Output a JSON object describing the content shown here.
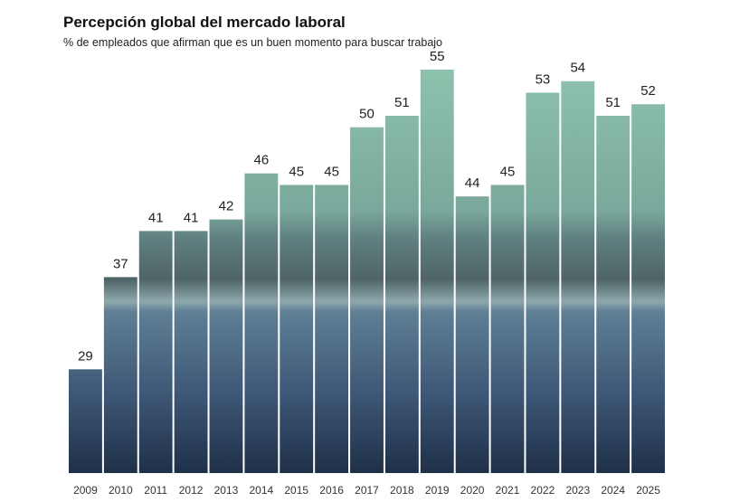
{
  "chart_data": {
    "type": "bar",
    "title": "Percepción global del mercado laboral",
    "subtitle": "% de empleados que afirman que es un buen momento para buscar trabajo",
    "categories": [
      "2009",
      "2010",
      "2011",
      "2012",
      "2013",
      "2014",
      "2015",
      "2016",
      "2017",
      "2018",
      "2019",
      "2020",
      "2021",
      "2022",
      "2023",
      "2024",
      "2025"
    ],
    "values": [
      29,
      37,
      41,
      41,
      42,
      46,
      45,
      45,
      50,
      51,
      55,
      44,
      45,
      53,
      54,
      51,
      52
    ],
    "ylim": [
      20,
      55
    ]
  }
}
